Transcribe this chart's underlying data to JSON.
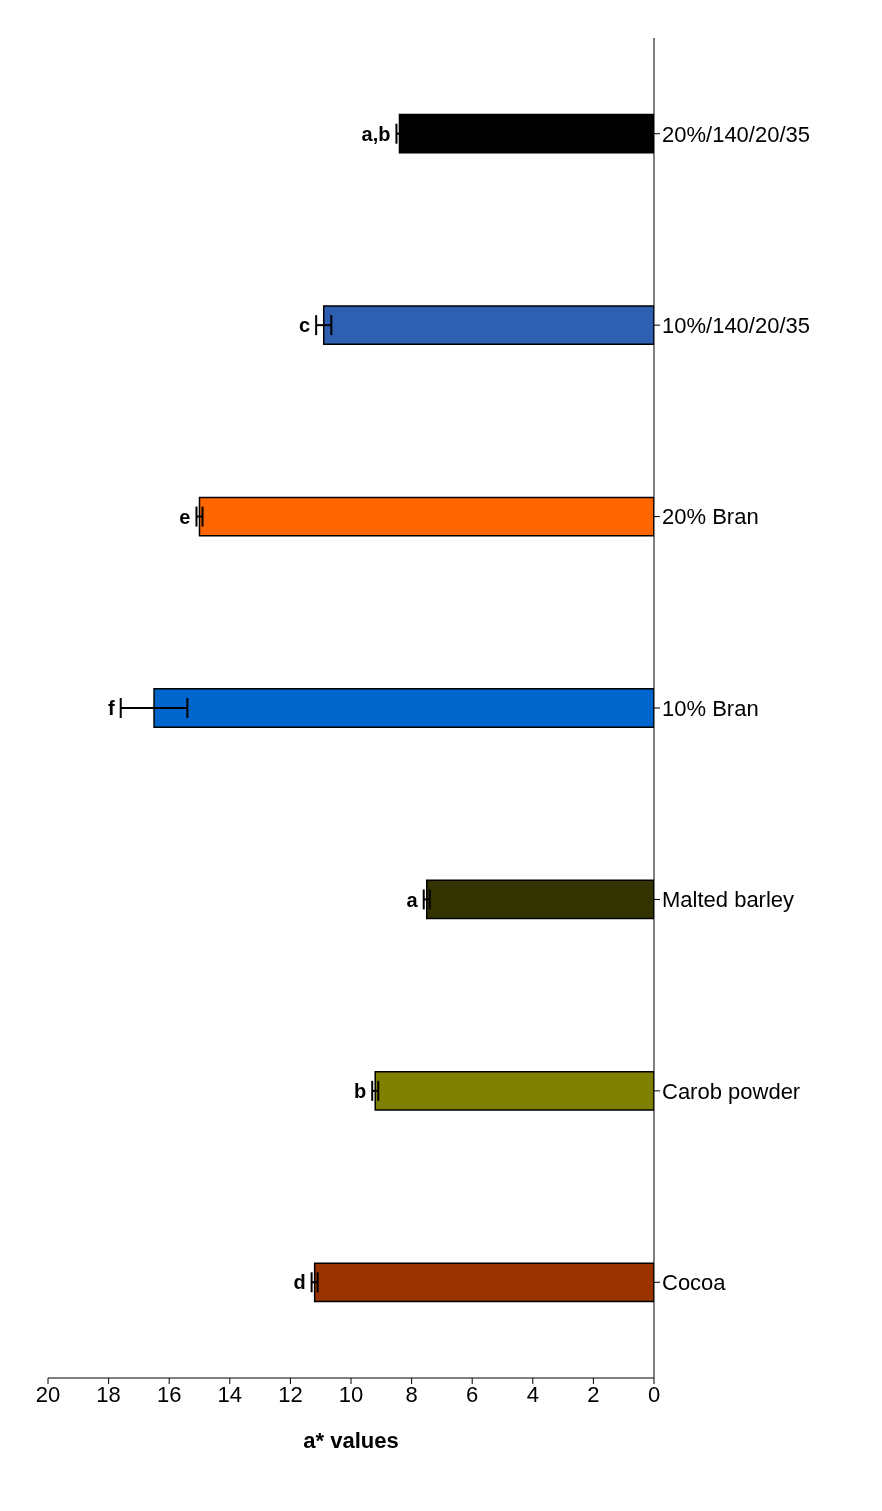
{
  "chart_data": {
    "type": "bar",
    "orientation": "horizontal",
    "xlabel": "a* values",
    "categories": [
      "20%/140/20/35",
      "10%/140/20/35",
      "20% Bran",
      "10% Bran",
      "Malted barley",
      "Carob powder",
      "Cocoa"
    ],
    "values": [
      8.4,
      10.9,
      15.0,
      16.5,
      7.5,
      9.2,
      11.2
    ],
    "errors": [
      0.1,
      0.25,
      0.1,
      1.1,
      0.1,
      0.1,
      0.1
    ],
    "colors": [
      "#000000",
      "#2f5fb0",
      "#ff6600",
      "#0066cc",
      "#333300",
      "#808000",
      "#993300"
    ],
    "xlim": [
      20,
      0
    ],
    "xticks": [
      0,
      2,
      4,
      6,
      8,
      10,
      12,
      14,
      16,
      18,
      20
    ],
    "grid": false,
    "annotations": [
      {
        "text": "a,b",
        "x": 8.5,
        "y": "20%/140/20/35"
      },
      {
        "text": "c",
        "x": 11.15,
        "y": "10%/140/20/35"
      },
      {
        "text": "e",
        "x": 15.1,
        "y": "20% Bran"
      },
      {
        "text": "f",
        "x": 17.6,
        "y": "10% Bran"
      },
      {
        "text": "a",
        "x": 7.6,
        "y": "Malted barley"
      },
      {
        "text": "b",
        "x": 9.3,
        "y": "Carob powder"
      },
      {
        "text": "d",
        "x": 11.3,
        "y": "Cocoa"
      }
    ]
  }
}
